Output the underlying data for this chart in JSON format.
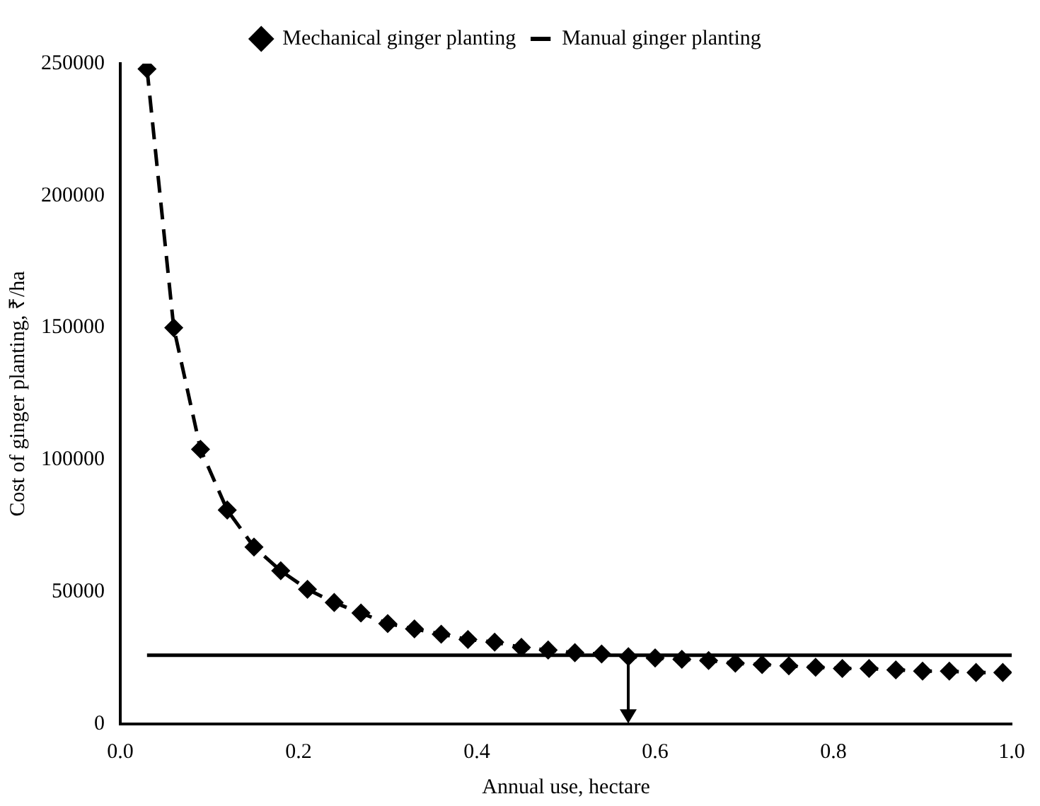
{
  "chart_data": {
    "type": "line",
    "xlabel": "Annual use, hectare",
    "ylabel": "Cost of ginger planting, ₹/ha",
    "xlim": [
      0,
      1.0
    ],
    "xticks": [
      {
        "value": 0,
        "label": "0.0"
      },
      {
        "value": 0.2,
        "label": "0.2"
      },
      {
        "value": 0.4,
        "label": "0.4"
      },
      {
        "value": 0.6,
        "label": "0.6"
      },
      {
        "value": 0.8,
        "label": "0.8"
      },
      {
        "value": 1,
        "label": "1.0"
      }
    ],
    "ylim": [
      0,
      250000
    ],
    "yticks": [
      0,
      50000,
      100000,
      150000,
      200000,
      250000
    ],
    "grid": false,
    "legend": "top",
    "series": [
      {
        "name": "Mechanical ginger planting",
        "color": "#000000",
        "marker": "diamond",
        "line_style": "dashed",
        "x": [
          0.03,
          0.06,
          0.09,
          0.12,
          0.15,
          0.18,
          0.21,
          0.24,
          0.27,
          0.3,
          0.33,
          0.36,
          0.39,
          0.42,
          0.45,
          0.48,
          0.51,
          0.54,
          0.57,
          0.6,
          0.63,
          0.66,
          0.69,
          0.72,
          0.75,
          0.78,
          0.81,
          0.84,
          0.87,
          0.9,
          0.93,
          0.96,
          0.99
        ],
        "values": [
          248000,
          150000,
          104000,
          81000,
          67000,
          58000,
          51000,
          46000,
          42000,
          38000,
          36000,
          34000,
          32000,
          31000,
          29000,
          28000,
          27000,
          26500,
          25500,
          25000,
          24500,
          24000,
          23000,
          22500,
          22000,
          21500,
          21000,
          21000,
          20500,
          20000,
          20000,
          19500,
          19500
        ]
      },
      {
        "name": "Manual ginger planting",
        "color": "#000000",
        "marker": "none",
        "line_style": "solid",
        "x": [
          0.03,
          1.0
        ],
        "values": [
          26000,
          26000
        ]
      }
    ]
  }
}
